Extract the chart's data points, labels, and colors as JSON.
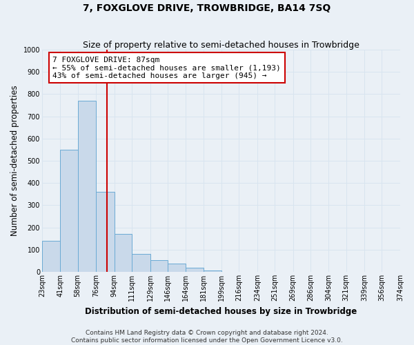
{
  "title": "7, FOXGLOVE DRIVE, TROWBRIDGE, BA14 7SQ",
  "subtitle": "Size of property relative to semi-detached houses in Trowbridge",
  "xlabel": "Distribution of semi-detached houses by size in Trowbridge",
  "ylabel": "Number of semi-detached properties",
  "bar_edges": [
    23,
    41,
    58,
    76,
    94,
    111,
    129,
    146,
    164,
    181,
    199,
    216,
    234,
    251,
    269,
    286,
    304,
    321,
    339,
    356,
    374
  ],
  "bar_heights": [
    140,
    550,
    770,
    360,
    170,
    80,
    53,
    37,
    18,
    5,
    0,
    0,
    0,
    0,
    0,
    0,
    0,
    0,
    0,
    0
  ],
  "bar_color": "#c9d9ea",
  "bar_edge_color": "#6aaad4",
  "property_line_x": 87,
  "property_line_color": "#cc0000",
  "annotation_title": "7 FOXGLOVE DRIVE: 87sqm",
  "annotation_line1": "← 55% of semi-detached houses are smaller (1,193)",
  "annotation_line2": "43% of semi-detached houses are larger (945) →",
  "annotation_box_facecolor": "#ffffff",
  "annotation_box_edgecolor": "#cc0000",
  "ylim": [
    0,
    1000
  ],
  "xlim": [
    23,
    374
  ],
  "tick_labels": [
    "23sqm",
    "41sqm",
    "58sqm",
    "76sqm",
    "94sqm",
    "111sqm",
    "129sqm",
    "146sqm",
    "164sqm",
    "181sqm",
    "199sqm",
    "216sqm",
    "234sqm",
    "251sqm",
    "269sqm",
    "286sqm",
    "304sqm",
    "321sqm",
    "339sqm",
    "356sqm",
    "374sqm"
  ],
  "ytick_labels": [
    "0",
    "100",
    "200",
    "300",
    "400",
    "500",
    "600",
    "700",
    "800",
    "900",
    "1000"
  ],
  "ytick_values": [
    0,
    100,
    200,
    300,
    400,
    500,
    600,
    700,
    800,
    900,
    1000
  ],
  "footer1": "Contains HM Land Registry data © Crown copyright and database right 2024.",
  "footer2": "Contains public sector information licensed under the Open Government Licence v3.0.",
  "bg_color": "#eaf0f6",
  "grid_color": "#d8e4ef",
  "title_fontsize": 10,
  "subtitle_fontsize": 9,
  "axis_label_fontsize": 8.5,
  "tick_fontsize": 7,
  "annotation_fontsize": 8,
  "footer_fontsize": 6.5
}
